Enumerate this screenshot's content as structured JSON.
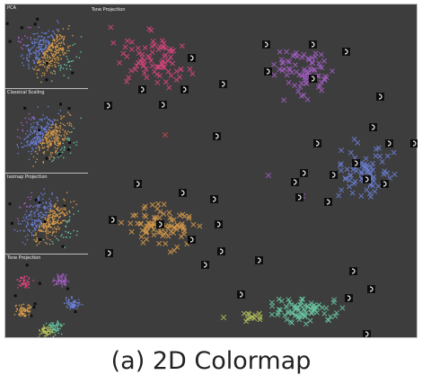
{
  "caption": "(a) 2D Colormap",
  "main_view": {
    "title": "Tsne Projection",
    "background": "#3d3d3d",
    "marker": "cross"
  },
  "sidebar": {
    "panels": [
      {
        "title": "PCA"
      },
      {
        "title": "Classical Scaling"
      },
      {
        "title": "Isomap Projection"
      },
      {
        "title": "Tsne Projection"
      }
    ]
  },
  "colors": {
    "magenta": "#d9457f",
    "purple": "#a45ec7",
    "blue": "#6b7fd6",
    "orange": "#d69a4a",
    "teal": "#68c4a0",
    "yellowgreen": "#b8c45a",
    "red": "#d6454f"
  }
}
